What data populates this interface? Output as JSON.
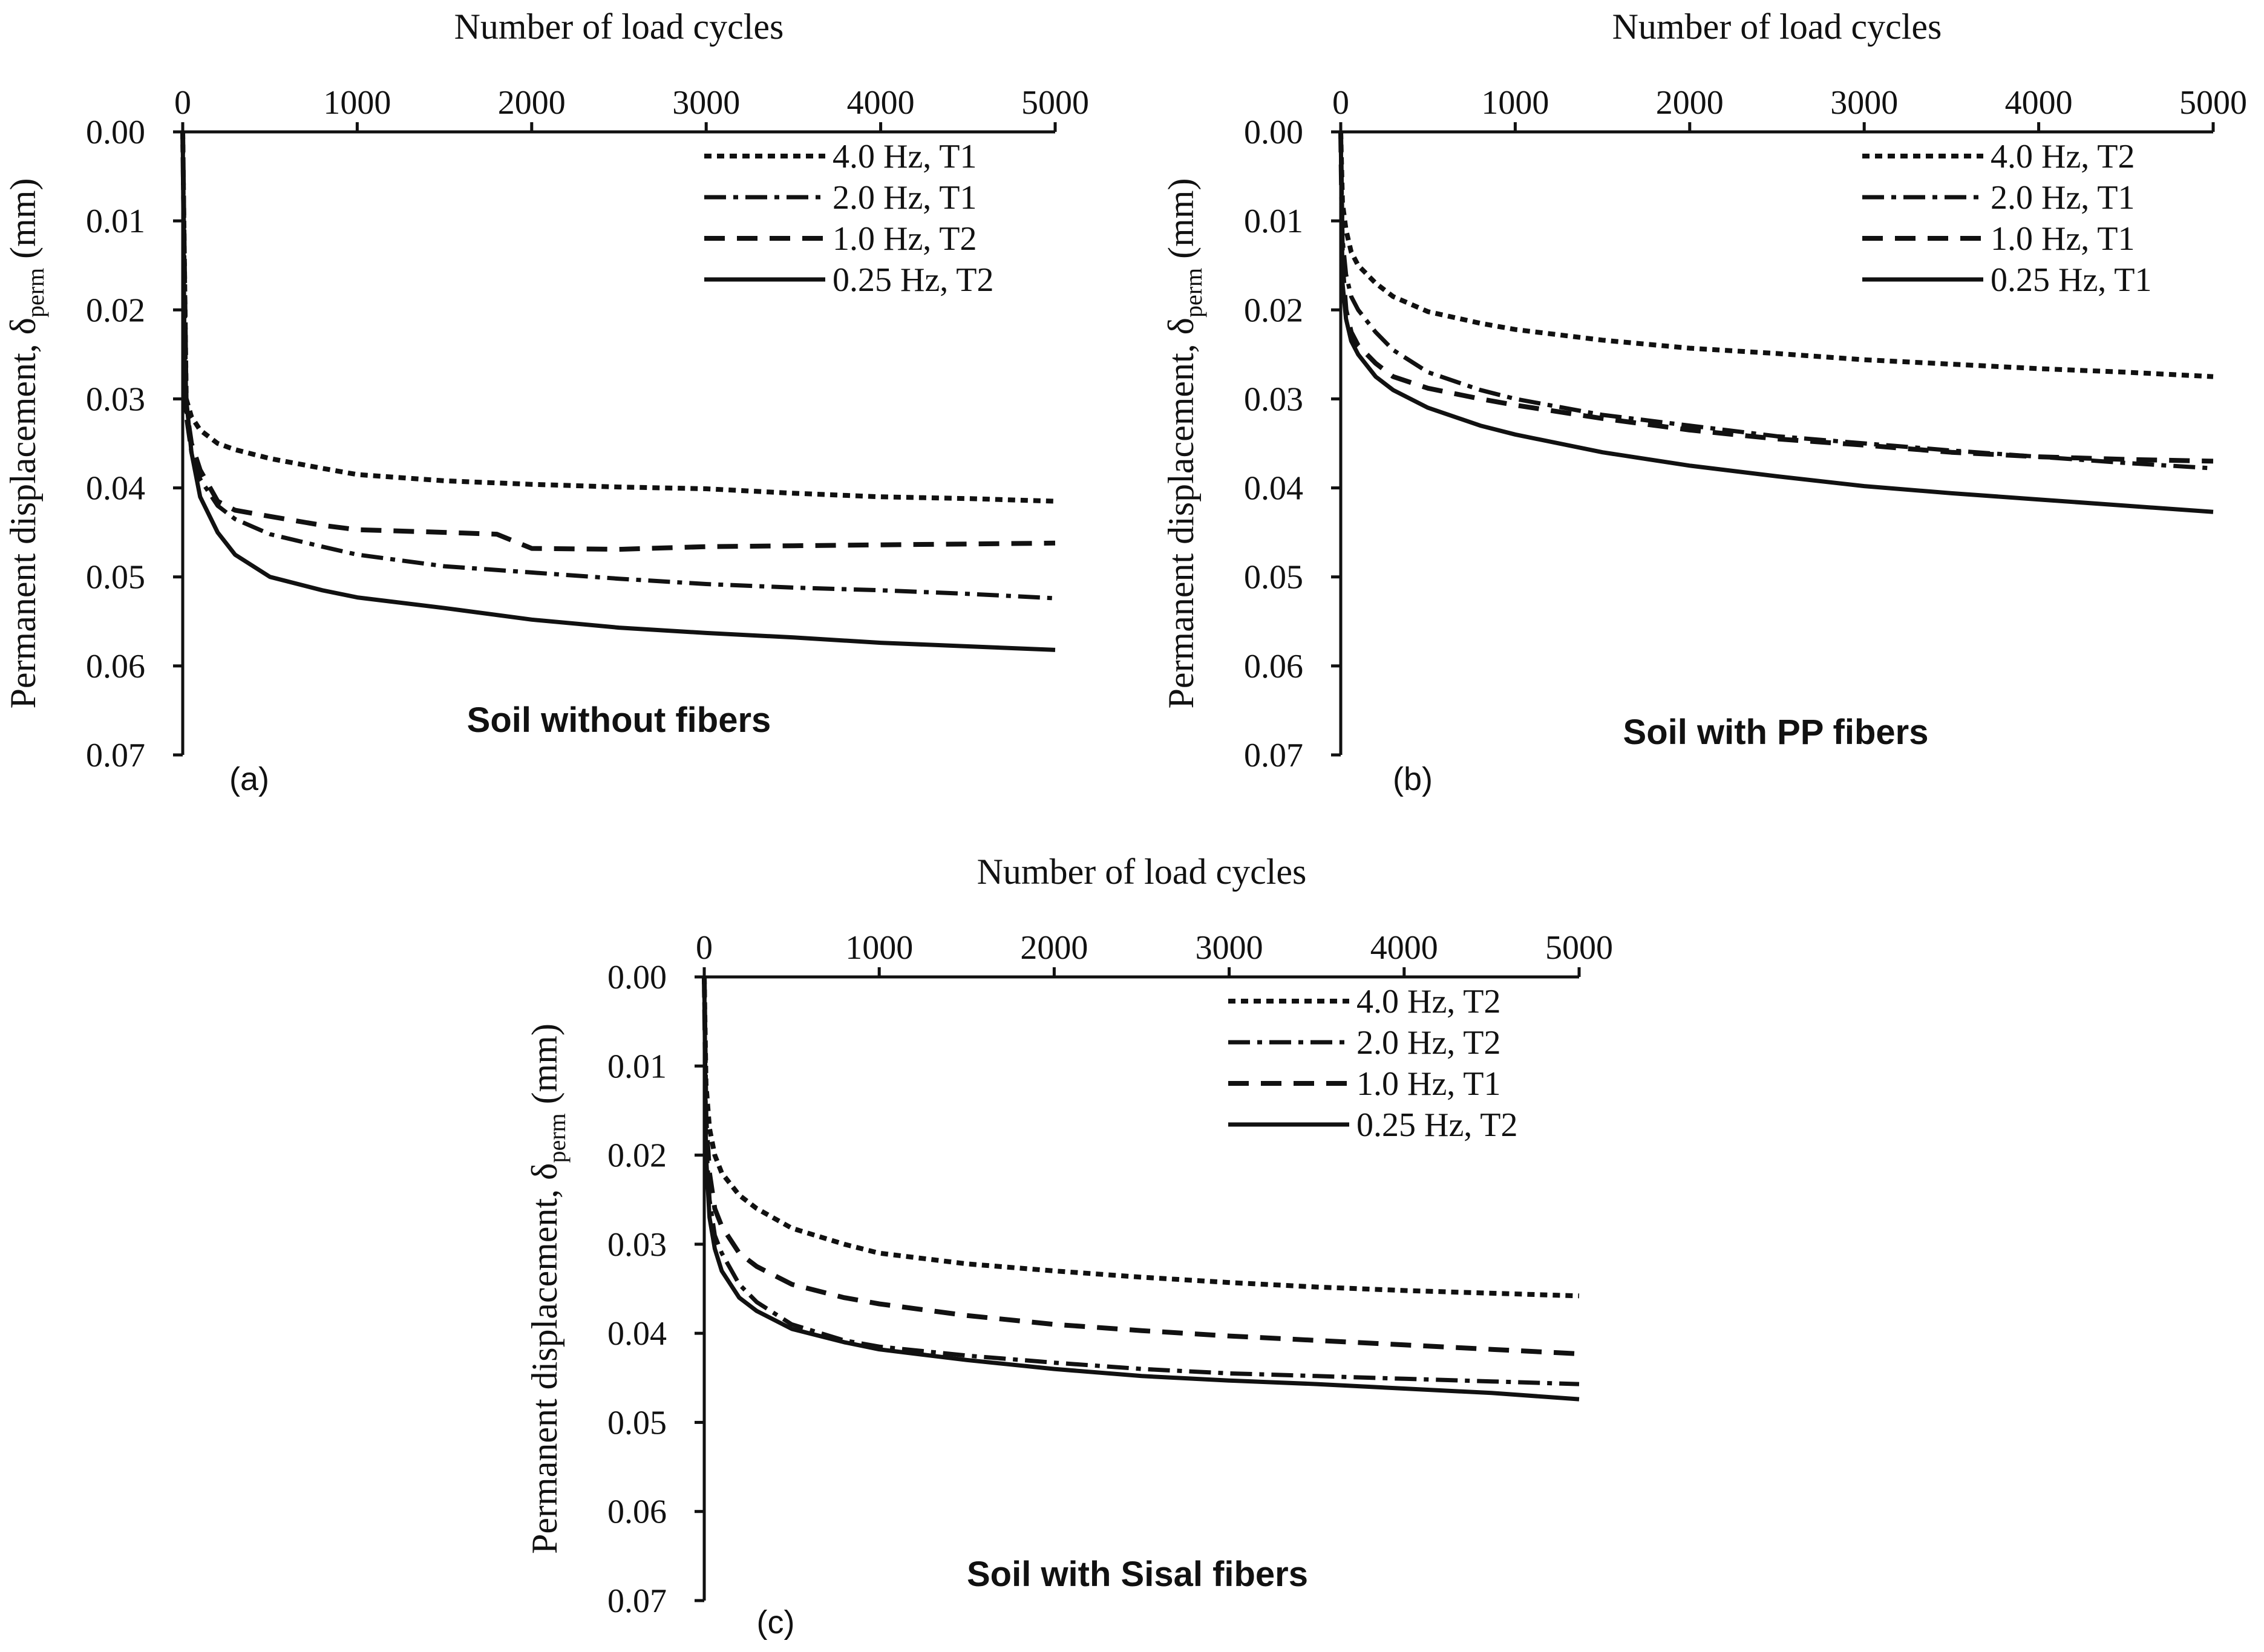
{
  "colors": {
    "ink": "#111111",
    "background": "#ffffff"
  },
  "chart_data": [
    {
      "type": "line",
      "panel_label": "(a)",
      "title": "Soil without fibers",
      "xlabel": "Number of load cycles",
      "ylabel_main": "Permanent displacement, δ",
      "ylabel_sub": "perm",
      "ylabel_unit": " (mm)",
      "xlim": [
        0,
        5000
      ],
      "ylim": [
        0,
        0.07
      ],
      "y_inverted": true,
      "x_ticks": [
        0,
        1000,
        2000,
        3000,
        4000,
        5000
      ],
      "x_tick_labels": [
        "0",
        "1000",
        "2000",
        "3000",
        "4000",
        "5000"
      ],
      "y_ticks": [
        0,
        0.01,
        0.02,
        0.03,
        0.04,
        0.05,
        0.06,
        0.07
      ],
      "y_tick_labels": [
        "0.00",
        "0.01",
        "0.02",
        "0.03",
        "0.04",
        "0.05",
        "0.06",
        "0.07"
      ],
      "legend_position": "top-right",
      "series": [
        {
          "name": "4.0 Hz, T1",
          "style": "dotted-short",
          "x": [
            0,
            20,
            50,
            100,
            200,
            300,
            500,
            800,
            1000,
            1500,
            2000,
            2500,
            3000,
            3500,
            4000,
            4500,
            5000
          ],
          "values": [
            0,
            0.03,
            0.032,
            0.0335,
            0.035,
            0.0357,
            0.0367,
            0.0378,
            0.0385,
            0.0392,
            0.0396,
            0.0399,
            0.0401,
            0.0406,
            0.041,
            0.0412,
            0.0415
          ]
        },
        {
          "name": "2.0 Hz, T1",
          "style": "dash-dot",
          "x": [
            0,
            20,
            50,
            100,
            200,
            300,
            500,
            800,
            1000,
            1500,
            2000,
            2500,
            3000,
            3500,
            4000,
            4500,
            5000
          ],
          "values": [
            0,
            0.032,
            0.036,
            0.039,
            0.042,
            0.0435,
            0.0452,
            0.0466,
            0.0475,
            0.0488,
            0.0495,
            0.0502,
            0.0508,
            0.0512,
            0.0515,
            0.0519,
            0.0524
          ]
        },
        {
          "name": "1.0 Hz, T2",
          "style": "dashed",
          "x": [
            0,
            20,
            50,
            100,
            200,
            300,
            500,
            800,
            1000,
            1500,
            1800,
            2000,
            2500,
            3000,
            3500,
            4000,
            4500,
            5000
          ],
          "values": [
            0,
            0.031,
            0.035,
            0.038,
            0.0415,
            0.0425,
            0.0432,
            0.0442,
            0.0447,
            0.045,
            0.0452,
            0.0468,
            0.0469,
            0.0466,
            0.0465,
            0.0464,
            0.0463,
            0.0462
          ]
        },
        {
          "name": "0.25 Hz, T2",
          "style": "solid",
          "x": [
            0,
            10,
            20,
            50,
            100,
            200,
            300,
            500,
            800,
            1000,
            1500,
            2000,
            2500,
            3000,
            3500,
            4000,
            4500,
            5000
          ],
          "values": [
            0,
            0.025,
            0.03,
            0.036,
            0.041,
            0.045,
            0.0475,
            0.05,
            0.0515,
            0.0523,
            0.0535,
            0.0548,
            0.0557,
            0.0563,
            0.0568,
            0.0574,
            0.0578,
            0.0582
          ]
        }
      ]
    },
    {
      "type": "line",
      "panel_label": "(b)",
      "title": "Soil with PP fibers",
      "xlabel": "Number of load cycles",
      "ylabel_main": "Permanent displacement, δ",
      "ylabel_sub": "perm",
      "ylabel_unit": " (mm)",
      "xlim": [
        0,
        5000
      ],
      "ylim": [
        0,
        0.07
      ],
      "y_inverted": true,
      "x_ticks": [
        0,
        1000,
        2000,
        3000,
        4000,
        5000
      ],
      "x_tick_labels": [
        "0",
        "1000",
        "2000",
        "3000",
        "4000",
        "5000"
      ],
      "y_ticks": [
        0,
        0.01,
        0.02,
        0.03,
        0.04,
        0.05,
        0.06,
        0.07
      ],
      "y_tick_labels": [
        "0.00",
        "0.01",
        "0.02",
        "0.03",
        "0.04",
        "0.05",
        "0.06",
        "0.07"
      ],
      "legend_position": "top-right",
      "series": [
        {
          "name": "4.0 Hz, T2",
          "style": "dotted-short",
          "x": [
            0,
            10,
            30,
            60,
            100,
            200,
            300,
            500,
            800,
            1000,
            1500,
            2000,
            2500,
            3000,
            3500,
            4000,
            4500,
            5000
          ],
          "values": [
            0,
            0.008,
            0.011,
            0.0135,
            0.015,
            0.017,
            0.0185,
            0.0202,
            0.0215,
            0.0222,
            0.0234,
            0.0243,
            0.0249,
            0.0256,
            0.0261,
            0.0266,
            0.027,
            0.0275
          ]
        },
        {
          "name": "2.0 Hz, T1",
          "style": "dash-dot",
          "x": [
            0,
            10,
            30,
            60,
            100,
            200,
            300,
            500,
            800,
            1000,
            1500,
            2000,
            2500,
            3000,
            3500,
            4000,
            4500,
            5000
          ],
          "values": [
            0,
            0.012,
            0.016,
            0.0185,
            0.02,
            0.0225,
            0.0245,
            0.027,
            0.029,
            0.03,
            0.0318,
            0.033,
            0.0342,
            0.035,
            0.0358,
            0.0365,
            0.0372,
            0.0378
          ]
        },
        {
          "name": "1.0 Hz, T1",
          "style": "dashed",
          "x": [
            0,
            10,
            30,
            60,
            100,
            200,
            300,
            500,
            800,
            1000,
            1500,
            2000,
            2500,
            3000,
            3500,
            4000,
            4500,
            5000
          ],
          "values": [
            0,
            0.015,
            0.02,
            0.0225,
            0.024,
            0.026,
            0.0275,
            0.0288,
            0.03,
            0.0307,
            0.0322,
            0.0335,
            0.0345,
            0.0352,
            0.036,
            0.0365,
            0.0368,
            0.037
          ]
        },
        {
          "name": "0.25 Hz, T1",
          "style": "solid",
          "x": [
            0,
            10,
            30,
            60,
            100,
            200,
            300,
            500,
            800,
            1000,
            1500,
            2000,
            2500,
            3000,
            3500,
            4000,
            4500,
            5000
          ],
          "values": [
            0,
            0.017,
            0.021,
            0.0235,
            0.025,
            0.0275,
            0.029,
            0.031,
            0.033,
            0.034,
            0.036,
            0.0375,
            0.0387,
            0.0398,
            0.0406,
            0.0413,
            0.042,
            0.0427
          ]
        }
      ]
    },
    {
      "type": "line",
      "panel_label": "(c)",
      "title": "Soil with Sisal fibers",
      "xlabel": "Number of load cycles",
      "ylabel_main": "Permanent displacement, δ",
      "ylabel_sub": "perm",
      "ylabel_unit": " (mm)",
      "xlim": [
        0,
        5000
      ],
      "ylim": [
        0,
        0.07
      ],
      "y_inverted": true,
      "x_ticks": [
        0,
        1000,
        2000,
        3000,
        4000,
        5000
      ],
      "x_tick_labels": [
        "0",
        "1000",
        "2000",
        "3000",
        "4000",
        "5000"
      ],
      "y_ticks": [
        0,
        0.01,
        0.02,
        0.03,
        0.04,
        0.05,
        0.06,
        0.07
      ],
      "y_tick_labels": [
        "0.00",
        "0.01",
        "0.02",
        "0.03",
        "0.04",
        "0.05",
        "0.06",
        "0.07"
      ],
      "legend_position": "top-right",
      "series": [
        {
          "name": "4.0 Hz, T2",
          "style": "dotted-short",
          "x": [
            0,
            10,
            30,
            60,
            100,
            200,
            300,
            500,
            800,
            1000,
            1500,
            2000,
            2500,
            3000,
            3500,
            4000,
            4500,
            5000
          ],
          "values": [
            0,
            0.012,
            0.017,
            0.02,
            0.022,
            0.0245,
            0.026,
            0.0282,
            0.03,
            0.031,
            0.0322,
            0.033,
            0.0337,
            0.0343,
            0.0348,
            0.0352,
            0.0355,
            0.0358
          ]
        },
        {
          "name": "2.0 Hz, T2",
          "style": "dash-dot",
          "x": [
            0,
            10,
            30,
            60,
            100,
            200,
            300,
            500,
            800,
            1000,
            1500,
            2000,
            2500,
            3000,
            3500,
            4000,
            4500,
            5000
          ],
          "values": [
            0,
            0.018,
            0.025,
            0.029,
            0.031,
            0.0345,
            0.0365,
            0.039,
            0.0408,
            0.0415,
            0.0425,
            0.0433,
            0.044,
            0.0445,
            0.0448,
            0.0451,
            0.0454,
            0.0457
          ]
        },
        {
          "name": "1.0 Hz, T1",
          "style": "dashed",
          "x": [
            0,
            10,
            30,
            60,
            100,
            200,
            300,
            500,
            800,
            1000,
            1500,
            2000,
            2500,
            3000,
            3500,
            4000,
            4500,
            5000
          ],
          "values": [
            0,
            0.016,
            0.022,
            0.026,
            0.028,
            0.031,
            0.0325,
            0.0345,
            0.036,
            0.0367,
            0.038,
            0.039,
            0.0397,
            0.0403,
            0.0408,
            0.0413,
            0.0418,
            0.0423
          ]
        },
        {
          "name": "0.25 Hz, T2",
          "style": "solid",
          "x": [
            0,
            10,
            30,
            60,
            100,
            200,
            300,
            500,
            800,
            1000,
            1500,
            2000,
            2500,
            3000,
            3500,
            4000,
            4500,
            5000
          ],
          "values": [
            0,
            0.02,
            0.027,
            0.0305,
            0.033,
            0.036,
            0.0375,
            0.0395,
            0.041,
            0.0418,
            0.043,
            0.044,
            0.0448,
            0.0453,
            0.0457,
            0.0462,
            0.0467,
            0.0474
          ]
        }
      ]
    }
  ]
}
